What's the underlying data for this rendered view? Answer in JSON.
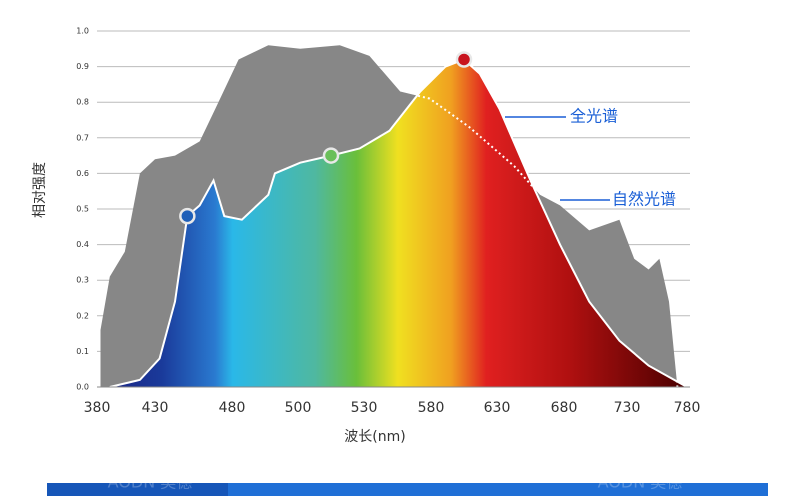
{
  "chart_data": {
    "type": "area",
    "x_label": "波长(nm)",
    "y_label": "相对强度",
    "xlim": [
      380,
      780
    ],
    "xticks": [
      380,
      430,
      480,
      500,
      530,
      580,
      630,
      680,
      730,
      780
    ],
    "ylim": [
      0,
      1
    ],
    "yticks": [
      {
        "value": 0,
        "label": "0.0"
      },
      0.1,
      0.2,
      0.3,
      0.4,
      0.5,
      0.6,
      0.7,
      0.8,
      0.9,
      {
        "value": 1,
        "label": "1.0"
      }
    ],
    "grid": true,
    "series": [
      {
        "name": "自然光谱",
        "color": "#878787",
        "x": [
          383,
          391,
          404,
          417,
          430,
          443,
          459,
          469,
          482,
          491,
          501,
          519,
          534,
          557,
          579,
          609,
          643,
          662,
          677,
          700,
          724,
          736,
          748,
          757,
          765,
          772
        ],
        "values": [
          0.16,
          0.31,
          0.38,
          0.6,
          0.64,
          0.65,
          0.69,
          0.78,
          0.92,
          0.96,
          0.95,
          0.96,
          0.93,
          0.83,
          0.81,
          0.73,
          0.62,
          0.54,
          0.51,
          0.44,
          0.47,
          0.36,
          0.33,
          0.36,
          0.24,
          0
        ]
      },
      {
        "name": "全光谱",
        "color": "#ffffff",
        "x": [
          391,
          417,
          433,
          443,
          451,
          459,
          468,
          475,
          483,
          491,
          493,
          501,
          515,
          528,
          549,
          572,
          591,
          605,
          617,
          632,
          655,
          677,
          700,
          724,
          748,
          780
        ],
        "values": [
          0,
          0.02,
          0.08,
          0.24,
          0.48,
          0.51,
          0.58,
          0.48,
          0.47,
          0.54,
          0.6,
          0.63,
          0.65,
          0.67,
          0.72,
          0.83,
          0.9,
          0.92,
          0.88,
          0.78,
          0.58,
          0.4,
          0.24,
          0.13,
          0.06,
          0
        ]
      }
    ],
    "markers": [
      {
        "series": 1,
        "index": 4,
        "color": "#1f5fb8"
      },
      {
        "series": 1,
        "index": 12,
        "color": "#6abf5a"
      },
      {
        "series": 1,
        "index": 17,
        "color": "#c8141e"
      }
    ]
  },
  "footer": {
    "watermarks": [
      "AODN 奥德",
      "AODN 奥德"
    ]
  }
}
